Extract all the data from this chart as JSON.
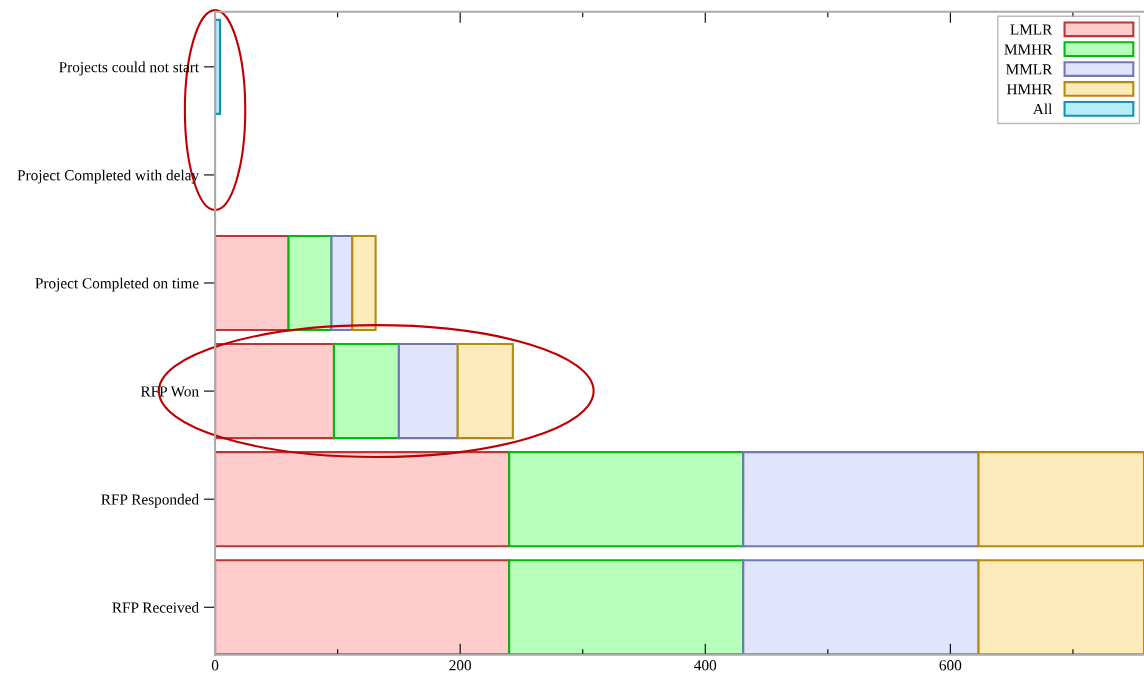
{
  "chart_data": {
    "type": "bar",
    "orientation": "horizontal",
    "stacked": true,
    "categories": [
      "Projects could not start",
      "Project Completed with delay",
      "Project Completed on time",
      "RFP Won",
      "RFP Responded",
      "RFP Received"
    ],
    "series": [
      {
        "name": "LMLR",
        "color": "#ffcccc",
        "values": [
          null,
          null,
          60,
          97,
          240,
          240
        ]
      },
      {
        "name": "MMHR",
        "color": "#b8ffbb",
        "values": [
          null,
          null,
          35,
          53,
          191,
          191
        ]
      },
      {
        "name": "MMLR",
        "color": "#e0e4fc",
        "values": [
          null,
          null,
          17,
          48,
          192,
          192
        ]
      },
      {
        "name": "HMHR",
        "color": "#fdebbb",
        "values": [
          null,
          0,
          19,
          45,
          135,
          135
        ]
      },
      {
        "name": "All",
        "color": "#b8ecf8",
        "values": [
          4,
          null,
          null,
          null,
          null,
          null
        ]
      }
    ],
    "xlim": [
      0,
      758
    ],
    "xticks": [
      0,
      {
        "value": 100,
        "label": null
      },
      200,
      {
        "value": 300,
        "label": null
      },
      400,
      {
        "value": 500,
        "label": null
      },
      600,
      {
        "value": 700,
        "label": null
      }
    ],
    "grid": false,
    "legend": "top right"
  }
}
